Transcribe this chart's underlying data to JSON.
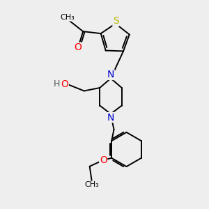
{
  "bg_color": "#eeeeee",
  "atom_colors": {
    "S": "#b8b800",
    "N": "#0000cc",
    "O": "#ff0000",
    "H": "#555555",
    "C": "#000000"
  },
  "lw": 1.4,
  "fs": 8.5
}
